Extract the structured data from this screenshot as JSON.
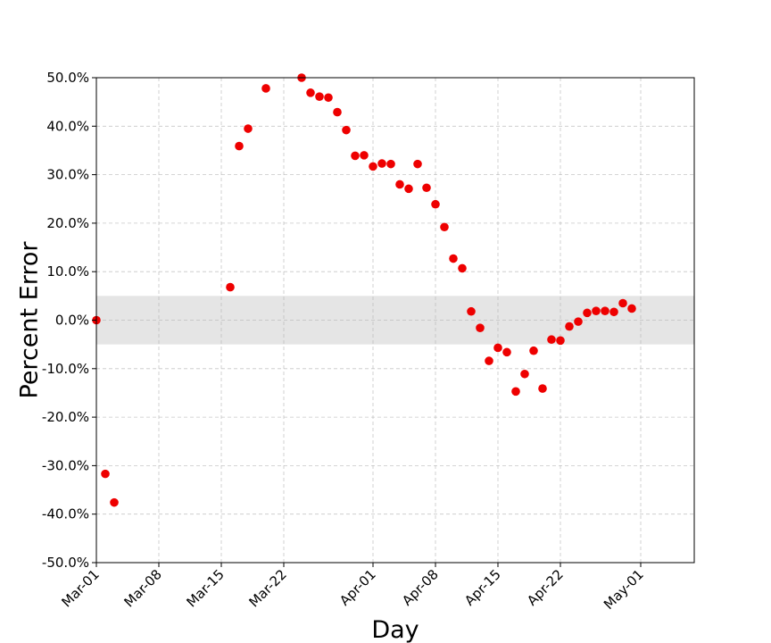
{
  "chart_data": {
    "type": "scatter",
    "title": "",
    "xlabel": "Day",
    "ylabel": "Percent Error",
    "grid": true,
    "legend": false,
    "xlim": [
      "2020-03-01",
      "2020-05-07"
    ],
    "ylim": [
      -0.5,
      0.5
    ],
    "y_format": "percent",
    "x_ticks": [
      {
        "date": "2020-03-01",
        "label": "Mar-01"
      },
      {
        "date": "2020-03-08",
        "label": "Mar-08"
      },
      {
        "date": "2020-03-15",
        "label": "Mar-15"
      },
      {
        "date": "2020-03-22",
        "label": "Mar-22"
      },
      {
        "date": "2020-04-01",
        "label": "Apr-01"
      },
      {
        "date": "2020-04-08",
        "label": "Apr-08"
      },
      {
        "date": "2020-04-15",
        "label": "Apr-15"
      },
      {
        "date": "2020-04-22",
        "label": "Apr-22"
      },
      {
        "date": "2020-05-01",
        "label": "May-01"
      }
    ],
    "y_ticks": [
      {
        "value": 0.5,
        "label": "50.0%"
      },
      {
        "value": 0.4,
        "label": "40.0%"
      },
      {
        "value": 0.3,
        "label": "30.0%"
      },
      {
        "value": 0.2,
        "label": "20.0%"
      },
      {
        "value": 0.1,
        "label": "10.0%"
      },
      {
        "value": 0.0,
        "label": "0.0%"
      },
      {
        "value": -0.1,
        "label": "-10.0%"
      },
      {
        "value": -0.2,
        "label": "-20.0%"
      },
      {
        "value": -0.3,
        "label": "-30.0%"
      },
      {
        "value": -0.4,
        "label": "-40.0%"
      },
      {
        "value": -0.5,
        "label": "-50.0%"
      }
    ],
    "band": {
      "y_min": -0.05,
      "y_max": 0.05,
      "color": "#e5e5e5"
    },
    "marker_color": "#ee0000",
    "points": [
      {
        "x": "2020-03-01",
        "y": 0.0
      },
      {
        "x": "2020-03-02",
        "y": -0.317
      },
      {
        "x": "2020-03-03",
        "y": -0.376
      },
      {
        "x": "2020-03-16",
        "y": 0.068
      },
      {
        "x": "2020-03-17",
        "y": 0.359
      },
      {
        "x": "2020-03-18",
        "y": 0.395
      },
      {
        "x": "2020-03-20",
        "y": 0.478
      },
      {
        "x": "2020-03-24",
        "y": 0.5
      },
      {
        "x": "2020-03-25",
        "y": 0.469
      },
      {
        "x": "2020-03-26",
        "y": 0.461
      },
      {
        "x": "2020-03-27",
        "y": 0.459
      },
      {
        "x": "2020-03-28",
        "y": 0.429
      },
      {
        "x": "2020-03-29",
        "y": 0.392
      },
      {
        "x": "2020-03-30",
        "y": 0.339
      },
      {
        "x": "2020-03-31",
        "y": 0.34
      },
      {
        "x": "2020-04-01",
        "y": 0.317
      },
      {
        "x": "2020-04-02",
        "y": 0.323
      },
      {
        "x": "2020-04-03",
        "y": 0.322
      },
      {
        "x": "2020-04-04",
        "y": 0.28
      },
      {
        "x": "2020-04-05",
        "y": 0.271
      },
      {
        "x": "2020-04-06",
        "y": 0.322
      },
      {
        "x": "2020-04-07",
        "y": 0.273
      },
      {
        "x": "2020-04-08",
        "y": 0.239
      },
      {
        "x": "2020-04-09",
        "y": 0.192
      },
      {
        "x": "2020-04-10",
        "y": 0.127
      },
      {
        "x": "2020-04-11",
        "y": 0.107
      },
      {
        "x": "2020-04-12",
        "y": 0.018
      },
      {
        "x": "2020-04-13",
        "y": -0.016
      },
      {
        "x": "2020-04-14",
        "y": -0.084
      },
      {
        "x": "2020-04-15",
        "y": -0.057
      },
      {
        "x": "2020-04-16",
        "y": -0.066
      },
      {
        "x": "2020-04-17",
        "y": -0.147
      },
      {
        "x": "2020-04-18",
        "y": -0.111
      },
      {
        "x": "2020-04-19",
        "y": -0.063
      },
      {
        "x": "2020-04-20",
        "y": -0.141
      },
      {
        "x": "2020-04-21",
        "y": -0.04
      },
      {
        "x": "2020-04-22",
        "y": -0.042
      },
      {
        "x": "2020-04-23",
        "y": -0.013
      },
      {
        "x": "2020-04-24",
        "y": -0.003
      },
      {
        "x": "2020-04-25",
        "y": 0.015
      },
      {
        "x": "2020-04-26",
        "y": 0.019
      },
      {
        "x": "2020-04-27",
        "y": 0.019
      },
      {
        "x": "2020-04-28",
        "y": 0.017
      },
      {
        "x": "2020-04-29",
        "y": 0.035
      },
      {
        "x": "2020-04-30",
        "y": 0.024
      }
    ]
  }
}
